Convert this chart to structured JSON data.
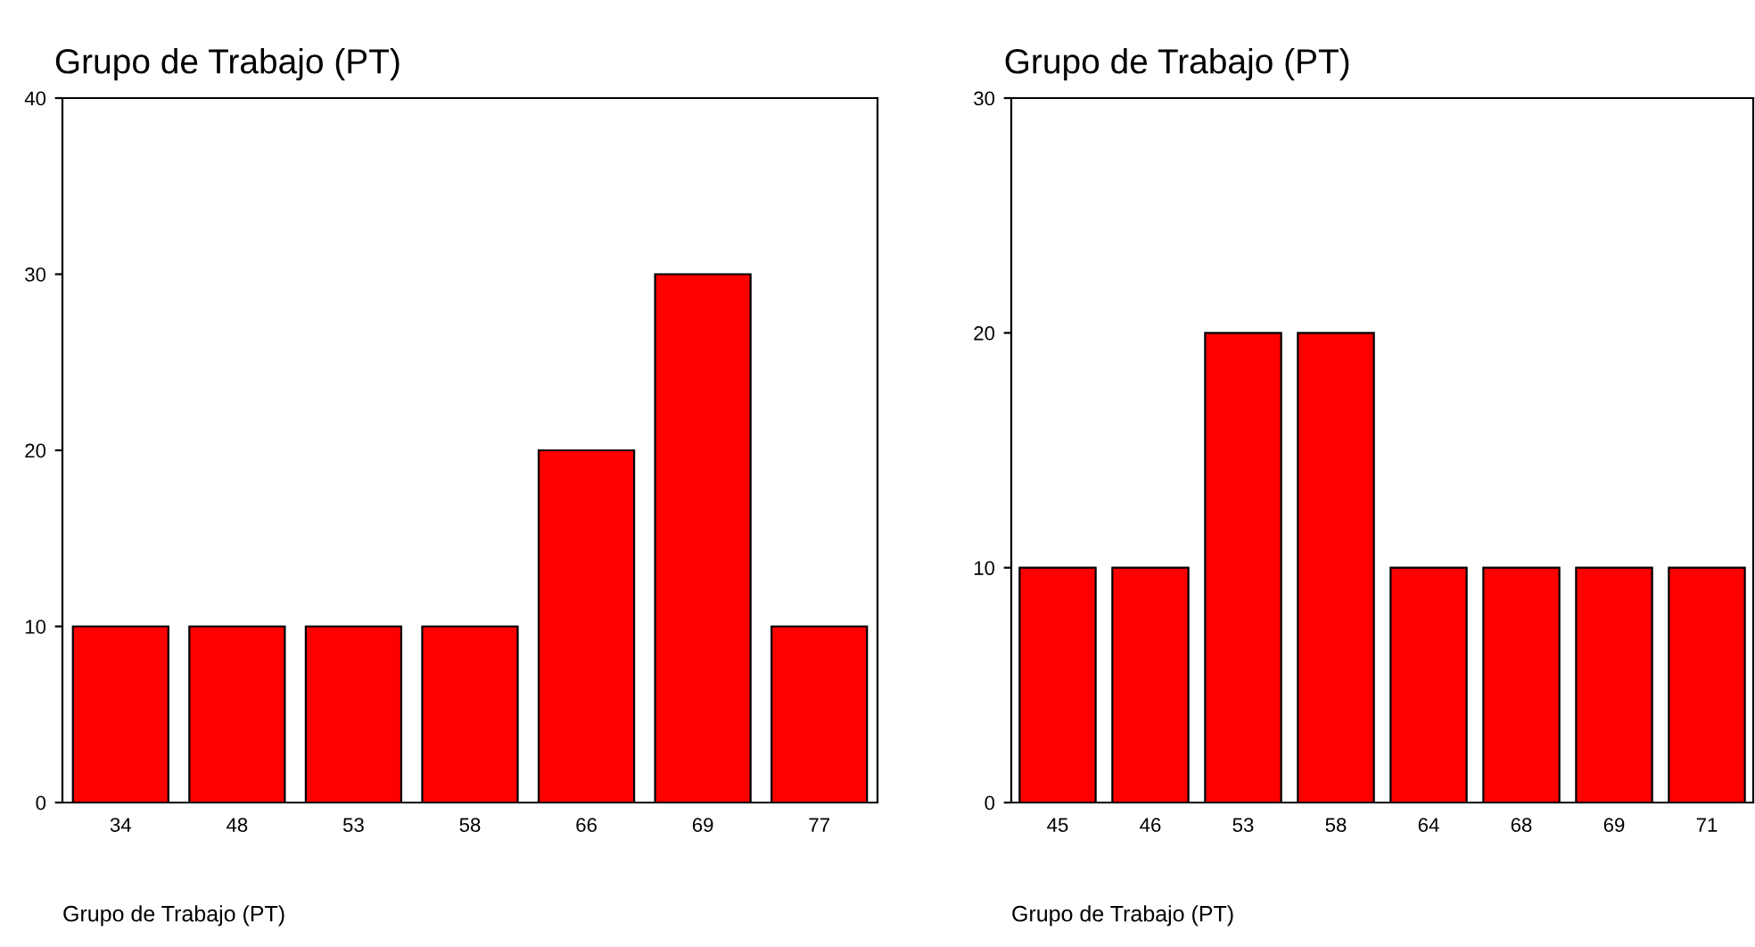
{
  "chart_data": [
    {
      "type": "bar",
      "title": "Grupo de Trabajo (PT)",
      "xlabel": "Grupo de Trabajo (PT)",
      "categories": [
        "34",
        "48",
        "53",
        "58",
        "66",
        "69",
        "77"
      ],
      "values": [
        10,
        10,
        10,
        10,
        20,
        30,
        10
      ],
      "color": "#ff0000",
      "ylim": [
        0,
        40
      ],
      "yticks": [
        0,
        10,
        20,
        30,
        40
      ],
      "grid": false,
      "legend": false
    },
    {
      "type": "bar",
      "title": "Grupo de Trabajo (PT)",
      "xlabel": "Grupo de Trabajo (PT)",
      "categories": [
        "45",
        "46",
        "53",
        "58",
        "64",
        "68",
        "69",
        "71"
      ],
      "values": [
        10,
        10,
        20,
        20,
        10,
        10,
        10,
        10
      ],
      "color": "#ff0000",
      "ylim": [
        0,
        30
      ],
      "yticks": [
        0,
        10,
        20,
        30
      ],
      "grid": false,
      "legend": false
    }
  ]
}
